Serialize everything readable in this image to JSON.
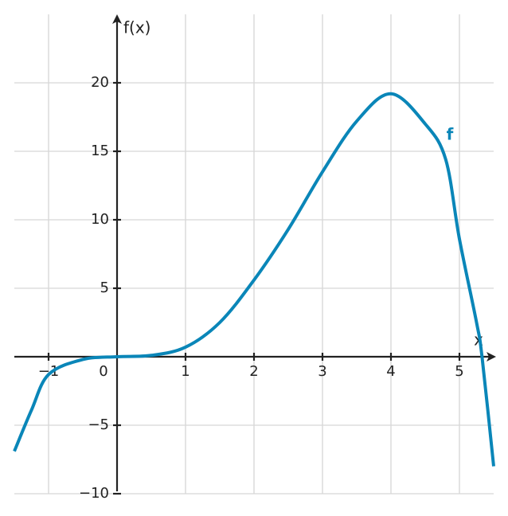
{
  "chart_data": {
    "type": "line",
    "x_label": "x",
    "y_label": "f(x)",
    "x": [
      -1.5,
      -1.25,
      -1,
      -0.5,
      0,
      0.5,
      1,
      1.5,
      2,
      2.5,
      3,
      3.5,
      4,
      4.5,
      4.8,
      5,
      5.25,
      5.33,
      5.5
    ],
    "series": [
      {
        "name": "f",
        "color": "#0a86b8",
        "values": [
          -6.9,
          -3.9,
          -1.3,
          -0.2,
          0,
          0.1,
          0.7,
          2.5,
          5.6,
          9.3,
          13.5,
          17.2,
          19.2,
          17.0,
          14.4,
          8.6,
          2.5,
          0,
          -8.0
        ]
      }
    ],
    "xlim": [
      -1.5,
      5.5
    ],
    "ylim": [
      -10,
      25
    ],
    "xticks": [
      {
        "value": -1,
        "label": "−1"
      },
      0,
      1,
      2,
      3,
      4,
      5
    ],
    "yticks": [
      {
        "value": -10,
        "label": "−10"
      },
      {
        "value": -5,
        "label": "−5"
      },
      5,
      10,
      15,
      20
    ],
    "grid": true
  }
}
